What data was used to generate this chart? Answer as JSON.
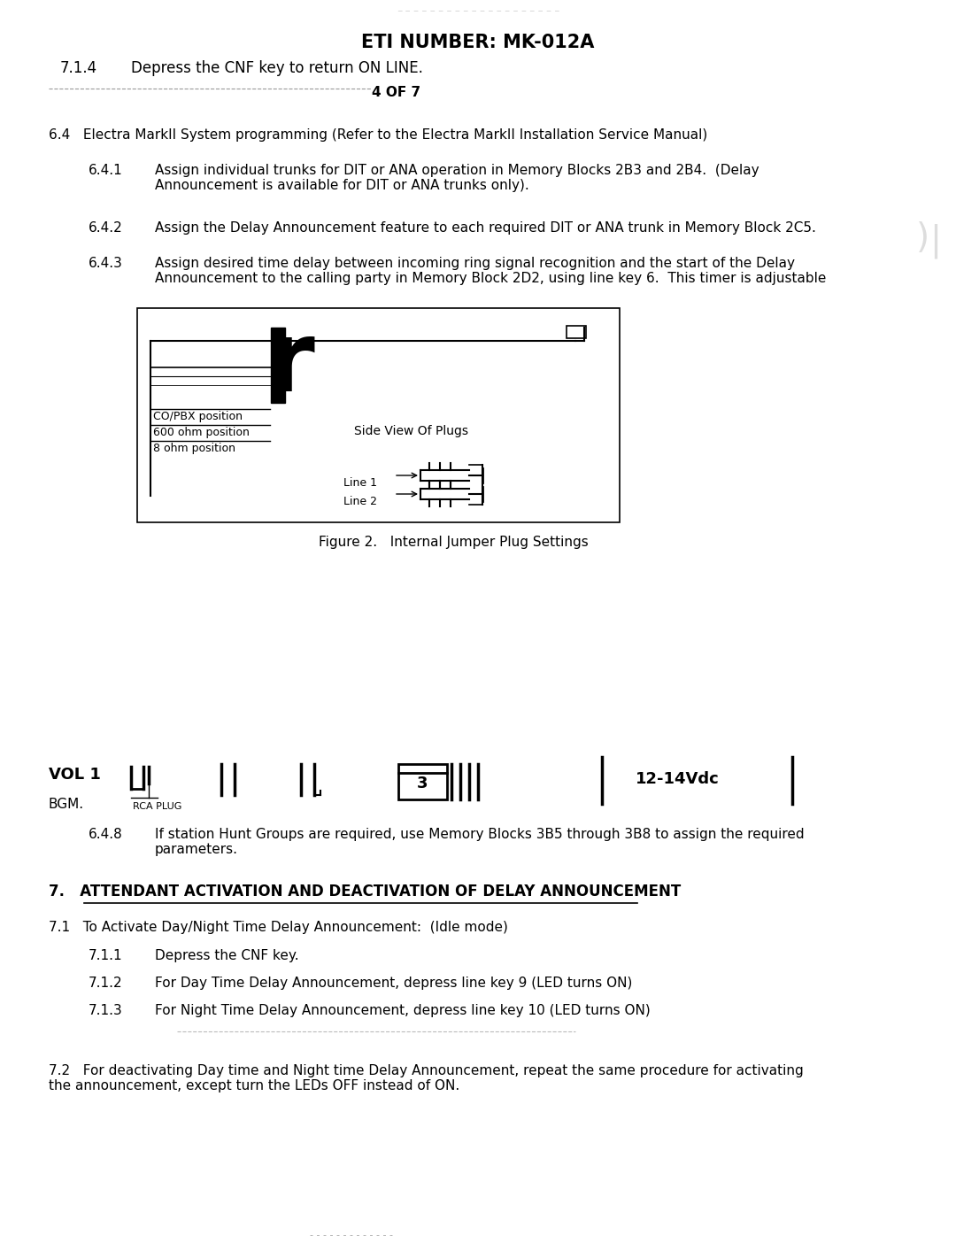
{
  "bg_color": "#ffffff",
  "header_title": "ETI NUMBER: MK-012A",
  "page_indicator": "4 OF 7",
  "section_64": "6.4   Electra MarkII System programming (Refer to the Electra MarkII Installation Service Manual)",
  "section_641_num": "6.4.1",
  "section_641_text": "Assign individual trunks for DIT or ANA operation in Memory Blocks 2B3 and 2B4.  (Delay\nAnnouncement is available for DIT or ANA trunks only).",
  "section_642_num": "6.4.2",
  "section_642_text": "Assign the Delay Announcement feature to each required DIT or ANA trunk in Memory Block 2C5.",
  "section_643_num": "6.4.3",
  "section_643_text": "Assign desired time delay between incoming ring signal recognition and the start of the Delay\nAnnouncement to the calling party in Memory Block 2D2, using line key 6.  This timer is adjustable",
  "fig2_caption": "Figure 2.   Internal Jumper Plug Settings",
  "vol1_label": "VOL 1",
  "bgm_label": "BGM.",
  "rca_label": "RCA PLUG",
  "num3_label": "3",
  "vdc_label": "12-14Vdc",
  "section_648_num": "6.4.8",
  "section_648_text": "If station Hunt Groups are required, use Memory Blocks 3B5 through 3B8 to assign the required\nparameters.",
  "section7_title": "7.   ATTENDANT ACTIVATION AND DEACTIVATION OF DELAY ANNOUNCEMENT",
  "section_71": "7.1   To Activate Day/Night Time Delay Announcement:  (Idle mode)",
  "section_711_num": "7.1.1",
  "section_711_text": "Depress the CNF key.",
  "section_712_num": "7.1.2",
  "section_712_text": "For Day Time Delay Announcement, depress line key 9 (LED turns ON)",
  "section_713_num": "7.1.3",
  "section_713_text": "For Night Time Delay Announcement, depress line key 10 (LED turns ON)",
  "section_72_text": "7.2   For deactivating Day time and Night time Delay Announcement, repeat the same procedure for activating\nthe announcement, except turn the LEDs OFF instead of ON.",
  "footer_dots": "- - - - - - - - - - - - -"
}
